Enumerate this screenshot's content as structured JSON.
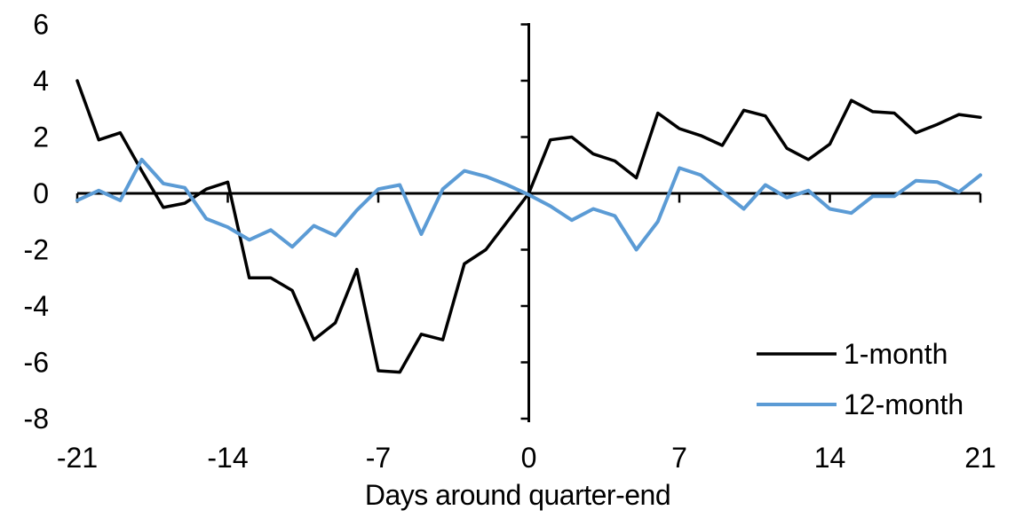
{
  "chart_data": {
    "type": "line",
    "title": "",
    "xlabel": "Days around quarter-end",
    "ylabel": "",
    "xlim": [
      -21,
      21
    ],
    "ylim": [
      -8,
      6
    ],
    "x_ticks": [
      -21,
      -14,
      -7,
      0,
      7,
      14,
      21
    ],
    "y_ticks": [
      6,
      4,
      2,
      0,
      -2,
      -4,
      -6,
      -8
    ],
    "grid": false,
    "legend_position": "lower-right",
    "background_color": "#FFFFFF",
    "axis_color": "#000000",
    "x": [
      -21,
      -20,
      -19,
      -18,
      -17,
      -16,
      -15,
      -14,
      -13,
      -12,
      -11,
      -10,
      -9,
      -8,
      -7,
      -6,
      -5,
      -4,
      -3,
      -2,
      -1,
      0,
      1,
      2,
      3,
      4,
      5,
      6,
      7,
      8,
      9,
      10,
      11,
      12,
      13,
      14,
      15,
      16,
      17,
      18,
      19,
      20,
      21
    ],
    "series": [
      {
        "name": "1-month",
        "color": "#000000",
        "values": [
          4.0,
          1.9,
          2.15,
          0.8,
          -0.5,
          -0.35,
          0.15,
          0.4,
          -3.0,
          -3.0,
          -3.45,
          -5.2,
          -4.6,
          -2.7,
          -6.3,
          -6.35,
          -5.0,
          -5.2,
          -2.5,
          -2.0,
          -1.0,
          0.0,
          1.9,
          2.0,
          1.4,
          1.15,
          0.55,
          2.85,
          2.3,
          2.05,
          1.7,
          2.95,
          2.75,
          1.6,
          1.2,
          1.75,
          3.3,
          2.9,
          2.85,
          2.15,
          2.45,
          2.8,
          2.7
        ]
      },
      {
        "name": "12-month",
        "color": "#5B9BD5",
        "values": [
          -0.25,
          0.1,
          -0.25,
          1.2,
          0.35,
          0.2,
          -0.9,
          -1.2,
          -1.65,
          -1.3,
          -1.9,
          -1.15,
          -1.5,
          -0.6,
          0.15,
          0.3,
          -1.45,
          0.15,
          0.8,
          0.6,
          0.3,
          -0.05,
          -0.45,
          -0.95,
          -0.55,
          -0.8,
          -2.0,
          -1.0,
          0.9,
          0.65,
          0.05,
          -0.55,
          0.3,
          -0.15,
          0.1,
          -0.55,
          -0.7,
          -0.1,
          -0.1,
          0.45,
          0.4,
          0.05,
          0.65
        ]
      }
    ]
  }
}
